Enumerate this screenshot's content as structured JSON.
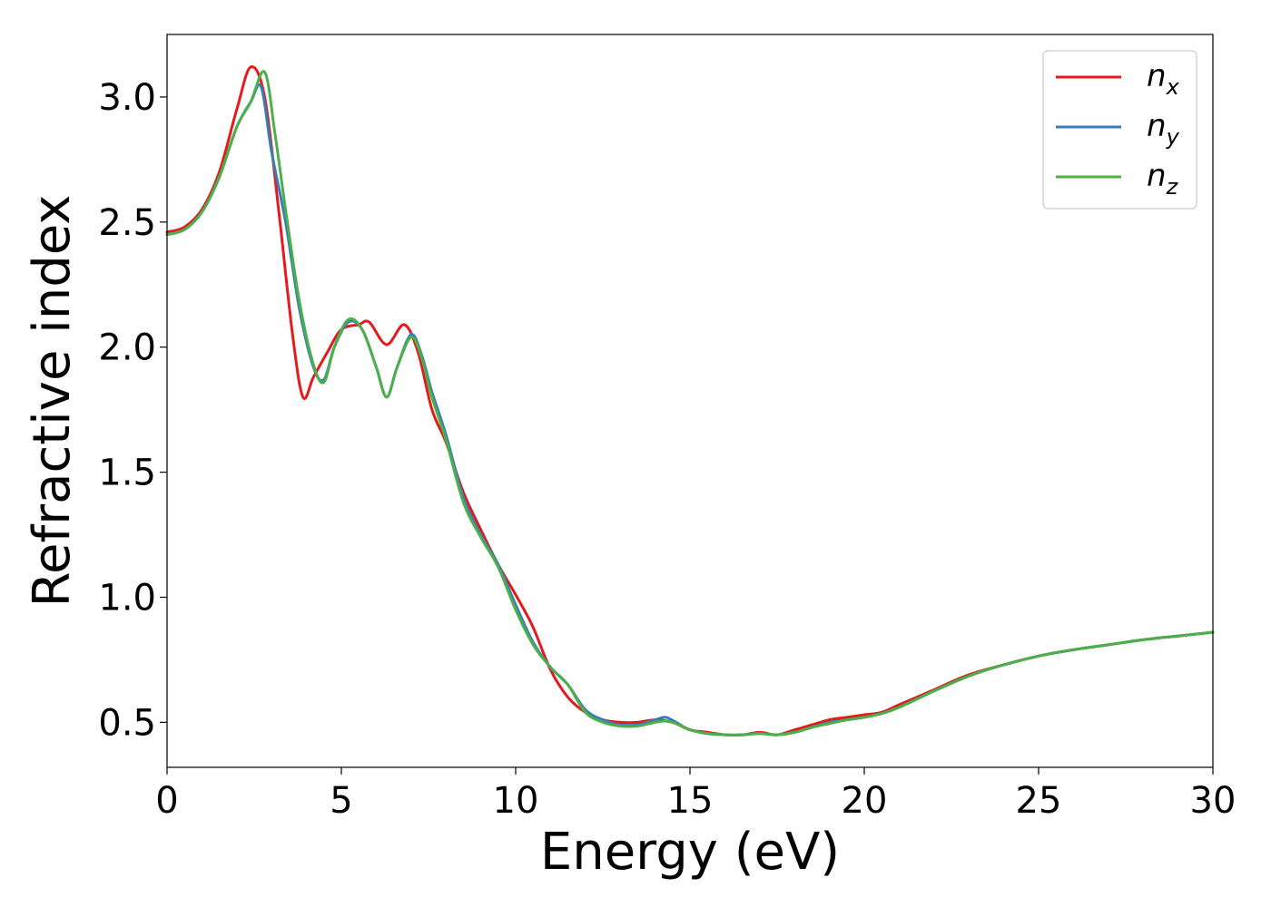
{
  "chart_data": {
    "type": "line",
    "xlabel": "Energy (eV)",
    "ylabel": "Refractive index",
    "xlim": [
      0,
      30
    ],
    "ylim": [
      0.32,
      3.25
    ],
    "xticks": [
      0,
      5,
      10,
      15,
      20,
      25,
      30
    ],
    "xtick_labels": [
      "0",
      "5",
      "10",
      "15",
      "20",
      "25",
      "30"
    ],
    "yticks": [
      0.5,
      1.0,
      1.5,
      2.0,
      2.5,
      3.0
    ],
    "ytick_labels": [
      "0.5",
      "1.0",
      "1.5",
      "2.0",
      "2.5",
      "3.0"
    ],
    "grid": false,
    "legend_position": "top-right",
    "series": [
      {
        "name": "n_x",
        "label_main": "n",
        "label_sub": "x",
        "color": "#e41a1c",
        "x": [
          0,
          0.5,
          1.0,
          1.5,
          2.0,
          2.4,
          2.8,
          3.2,
          3.6,
          3.9,
          4.2,
          4.6,
          5.0,
          5.5,
          5.8,
          6.3,
          6.8,
          7.2,
          7.6,
          8.0,
          8.5,
          9.0,
          9.5,
          10.0,
          10.5,
          11.0,
          11.5,
          12.0,
          12.5,
          13.0,
          13.5,
          14.0,
          14.5,
          15.0,
          15.5,
          16.0,
          16.5,
          17.0,
          17.5,
          18.0,
          18.5,
          19.0,
          19.5,
          20.0,
          20.5,
          21.0,
          22.0,
          23.0,
          24.0,
          25.0,
          26.0,
          27.0,
          28.0,
          29.0,
          30.0
        ],
        "y": [
          2.46,
          2.48,
          2.55,
          2.7,
          2.95,
          3.12,
          3.0,
          2.55,
          2.05,
          1.8,
          1.88,
          1.98,
          2.07,
          2.09,
          2.1,
          2.01,
          2.09,
          1.98,
          1.75,
          1.62,
          1.42,
          1.27,
          1.13,
          1.01,
          0.88,
          0.71,
          0.6,
          0.54,
          0.51,
          0.5,
          0.5,
          0.51,
          0.5,
          0.47,
          0.46,
          0.45,
          0.45,
          0.46,
          0.45,
          0.47,
          0.49,
          0.51,
          0.52,
          0.53,
          0.54,
          0.57,
          0.63,
          0.69,
          0.73,
          0.765,
          0.79,
          0.81,
          0.83,
          0.845,
          0.86
        ]
      },
      {
        "name": "n_y",
        "label_main": "n",
        "label_sub": "y",
        "color": "#377eb8",
        "x": [
          0,
          0.5,
          1.0,
          1.5,
          2.0,
          2.4,
          2.7,
          3.0,
          3.4,
          3.8,
          4.2,
          4.5,
          4.8,
          5.2,
          5.6,
          6.0,
          6.3,
          6.6,
          7.0,
          7.3,
          7.6,
          8.0,
          8.5,
          9.0,
          9.5,
          10.0,
          10.5,
          11.0,
          11.5,
          12.0,
          12.5,
          13.0,
          13.5,
          14.0,
          14.3,
          14.6,
          15.0,
          15.5,
          16.0,
          16.5,
          17.0,
          17.5,
          18.0,
          18.5,
          19.0,
          19.5,
          20.0,
          20.5,
          21.0,
          22.0,
          23.0,
          24.0,
          25.0,
          26.0,
          27.0,
          28.0,
          29.0,
          30.0
        ],
        "y": [
          2.45,
          2.47,
          2.54,
          2.68,
          2.88,
          2.98,
          3.04,
          2.78,
          2.5,
          2.15,
          1.92,
          1.87,
          2.0,
          2.1,
          2.07,
          1.92,
          1.8,
          1.92,
          2.05,
          1.97,
          1.82,
          1.65,
          1.4,
          1.25,
          1.13,
          0.97,
          0.82,
          0.72,
          0.65,
          0.55,
          0.51,
          0.49,
          0.49,
          0.51,
          0.52,
          0.5,
          0.47,
          0.455,
          0.45,
          0.45,
          0.455,
          0.45,
          0.46,
          0.48,
          0.5,
          0.51,
          0.52,
          0.535,
          0.56,
          0.625,
          0.685,
          0.73,
          0.765,
          0.79,
          0.81,
          0.83,
          0.845,
          0.86
        ]
      },
      {
        "name": "n_z",
        "label_main": "n",
        "label_sub": "z",
        "color": "#4daf4a",
        "x": [
          0,
          0.5,
          1.0,
          1.5,
          2.0,
          2.4,
          2.8,
          3.1,
          3.4,
          3.8,
          4.2,
          4.5,
          4.8,
          5.2,
          5.6,
          6.0,
          6.3,
          6.6,
          7.0,
          7.3,
          7.6,
          8.0,
          8.5,
          9.0,
          9.5,
          10.0,
          10.5,
          11.0,
          11.5,
          12.0,
          12.5,
          13.0,
          13.5,
          14.0,
          14.3,
          14.6,
          15.0,
          15.5,
          16.0,
          16.5,
          17.0,
          17.5,
          18.0,
          18.5,
          19.0,
          19.5,
          20.0,
          20.5,
          21.0,
          22.0,
          23.0,
          24.0,
          25.0,
          26.0,
          27.0,
          28.0,
          29.0,
          30.0
        ],
        "y": [
          2.45,
          2.47,
          2.54,
          2.68,
          2.88,
          2.98,
          3.1,
          2.85,
          2.55,
          2.18,
          1.93,
          1.86,
          2.0,
          2.11,
          2.07,
          1.92,
          1.8,
          1.92,
          2.04,
          1.96,
          1.8,
          1.63,
          1.38,
          1.24,
          1.12,
          0.95,
          0.81,
          0.72,
          0.65,
          0.54,
          0.5,
          0.485,
          0.485,
          0.5,
          0.505,
          0.495,
          0.47,
          0.455,
          0.45,
          0.45,
          0.455,
          0.45,
          0.46,
          0.48,
          0.495,
          0.51,
          0.52,
          0.535,
          0.56,
          0.625,
          0.685,
          0.73,
          0.765,
          0.79,
          0.81,
          0.83,
          0.845,
          0.86
        ]
      }
    ]
  }
}
